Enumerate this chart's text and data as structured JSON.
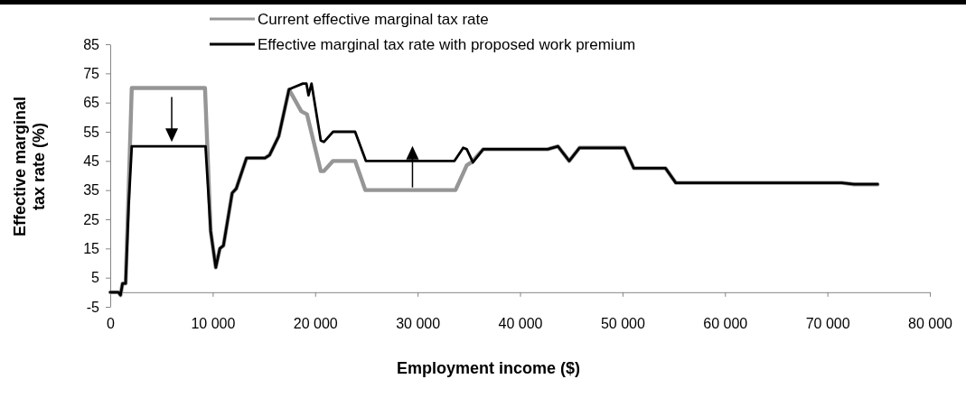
{
  "chart_data": {
    "type": "line",
    "xlabel": "Employment income ($)",
    "ylabel": "Effective marginal tax rate (%)",
    "xlim": [
      0,
      80000
    ],
    "ylim": [
      -5,
      85
    ],
    "xticks": [
      0,
      {
        "value": 10000,
        "label": "10 000"
      },
      {
        "value": 20000,
        "label": "20 000"
      },
      {
        "value": 30000,
        "label": "30 000"
      },
      {
        "value": 40000,
        "label": "40 000"
      },
      {
        "value": 50000,
        "label": "50 000"
      },
      {
        "value": 60000,
        "label": "60 000"
      },
      {
        "value": 70000,
        "label": "70 000"
      },
      {
        "value": 80000,
        "label": "80 000"
      }
    ],
    "yticks": [
      -5,
      5,
      15,
      25,
      35,
      45,
      55,
      65,
      75,
      85
    ],
    "grid": false,
    "legend": "top",
    "marker": "none",
    "line_style": "solid",
    "series": [
      {
        "name": "Current effective marginal tax rate",
        "color": "#969696",
        "x": [
          0,
          800,
          1000,
          1200,
          1500,
          1750,
          2100,
          9250,
          9800,
          10300,
          10700,
          11050,
          11900,
          12300,
          13300,
          15100,
          15550,
          16450,
          17450,
          18650,
          19200,
          20550,
          20850,
          21750,
          23900,
          24900,
          33700,
          34800,
          35250,
          36400,
          42700,
          43700,
          44800,
          45800,
          50200,
          51100,
          54200,
          55200,
          71400,
          72600,
          74900
        ],
        "values": [
          0,
          0,
          -1,
          3,
          3,
          30,
          70,
          70,
          21,
          8.5,
          15,
          16,
          34,
          35.5,
          46,
          46,
          47,
          53.5,
          69.5,
          62,
          61,
          41.5,
          41.5,
          45,
          45,
          35,
          35,
          43.5,
          44.5,
          49,
          49,
          50,
          45,
          49.5,
          49.5,
          42.5,
          42.5,
          37.5,
          37.5,
          37,
          37
        ]
      },
      {
        "name": "Effective marginal tax rate with proposed work premium",
        "color": "#000000",
        "x": [
          0,
          800,
          1000,
          1200,
          1500,
          1800,
          2100,
          9300,
          9800,
          10300,
          10700,
          11050,
          11900,
          12300,
          13300,
          15100,
          15550,
          16450,
          17450,
          17750,
          18800,
          19150,
          19350,
          19650,
          20550,
          20850,
          21750,
          23900,
          24950,
          33600,
          34450,
          34800,
          35400,
          36400,
          42700,
          43700,
          44800,
          45800,
          50200,
          51100,
          54200,
          55200,
          71400,
          72600,
          74900
        ],
        "values": [
          0,
          0,
          -1,
          3,
          3,
          30,
          50,
          50,
          21,
          8.5,
          15,
          16,
          34,
          35.5,
          46,
          46,
          47,
          53.5,
          69.5,
          70,
          71.5,
          71.5,
          67.5,
          71.5,
          52,
          51.5,
          55,
          55,
          45,
          45,
          49.5,
          49,
          44.5,
          49,
          49,
          50,
          45,
          49.5,
          49.5,
          42.5,
          42.5,
          37.5,
          37.5,
          37,
          37
        ]
      }
    ]
  }
}
